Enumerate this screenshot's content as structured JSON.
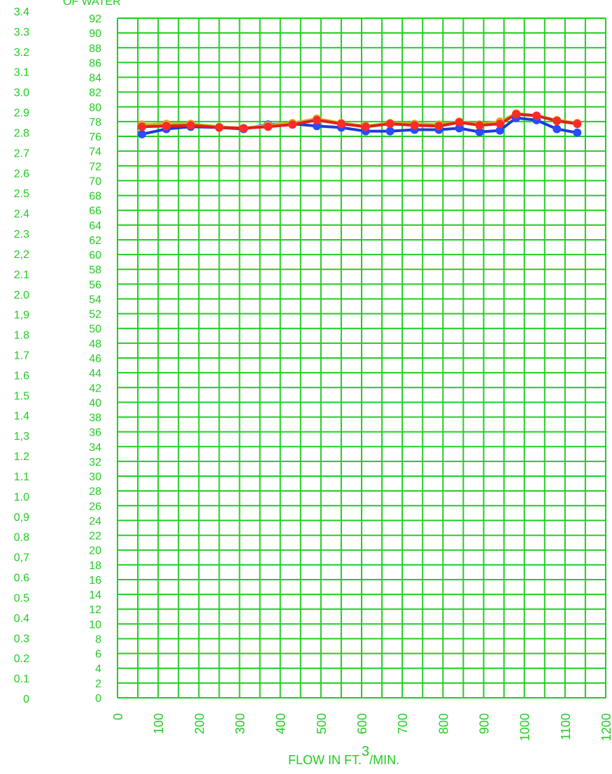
{
  "chart_data": {
    "type": "line",
    "title": "",
    "left_axis_label": "OF WATER",
    "xlabel_main": "FLOW IN FT.",
    "xlabel_sup": "3",
    "xlabel_tail": "/MIN.",
    "xlim": [
      0,
      1200
    ],
    "ylim": [
      0,
      92
    ],
    "y2lim": [
      0,
      3.4
    ],
    "x_ticks": [
      "0",
      "100",
      "200",
      "300",
      "400",
      "500",
      "600",
      "700",
      "800",
      "900",
      "1000",
      "1100",
      "1200"
    ],
    "y_ticks": [
      "0",
      "2",
      "4",
      "6",
      "8",
      "10",
      "12",
      "14",
      "16",
      "18",
      "20",
      "22",
      "24",
      "26",
      "28",
      "30",
      "32",
      "34",
      "36",
      "38",
      "40",
      "42",
      "44",
      "46",
      "48",
      "50",
      "52",
      "54",
      "56",
      "58",
      "60",
      "62",
      "64",
      "66",
      "68",
      "70",
      "72",
      "74",
      "76",
      "78",
      "80",
      "82",
      "84",
      "86",
      "88",
      "90",
      "92"
    ],
    "y2_ticks": [
      "0",
      "0.1",
      "0.2",
      "0.3",
      "0.4",
      "0.5",
      "0.6",
      "0,7",
      "0.8",
      "0,9",
      "1.0",
      "1.1",
      "1.2",
      "1,3",
      "1.4",
      "1.5",
      "1.6",
      "1.7",
      "1.8",
      "1,9",
      "2.0",
      "2.1",
      "2,2",
      "2.3",
      "2.4",
      "2.5",
      "2.6",
      "2.7",
      "2.8",
      "2.9",
      "3.0",
      "3.1",
      "3.2",
      "3.3",
      "3.4"
    ],
    "grid": true,
    "x": [
      60,
      120,
      180,
      250,
      310,
      370,
      430,
      490,
      550,
      610,
      670,
      730,
      790,
      840,
      890,
      940,
      980,
      1030,
      1080,
      1130
    ],
    "series": [
      {
        "color": "#1f3bd6",
        "marker_color": "#2a4bff",
        "values": [
          76.3,
          77.0,
          77.3,
          77.2,
          77.0,
          77.6,
          77.7,
          77.4,
          77.2,
          76.7,
          76.7,
          76.9,
          76.9,
          77.1,
          76.6,
          76.8,
          78.5,
          78.2,
          77.0,
          76.5
        ]
      },
      {
        "color": "#d4b21f",
        "marker_color": "#d4b21f",
        "values": [
          77.6,
          77.7,
          77.7,
          77.3,
          77.1,
          77.5,
          77.8,
          78.4,
          77.8,
          77.4,
          77.8,
          77.7,
          77.6,
          78.0,
          77.6,
          78.0,
          79.1,
          78.8,
          78.2,
          77.8
        ]
      },
      {
        "color": "#e01f1f",
        "marker_color": "#ff2a2a",
        "values": [
          77.3,
          77.4,
          77.5,
          77.2,
          77.1,
          77.3,
          77.6,
          78.2,
          77.7,
          77.3,
          77.7,
          77.5,
          77.4,
          77.9,
          77.5,
          77.7,
          79.0,
          78.8,
          78.1,
          77.7
        ]
      }
    ]
  }
}
